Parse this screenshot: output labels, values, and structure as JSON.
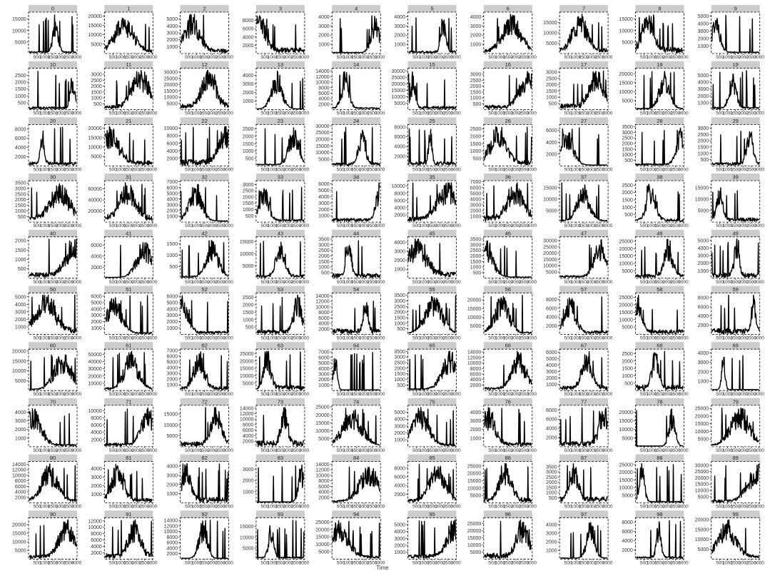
{
  "chart_data": {
    "type": "line",
    "layout": "small-multiples",
    "xlabel": "Time",
    "ylabel": "",
    "x_tick_labels": [
      "500",
      "1000",
      "1500",
      "2000",
      "2500",
      "3000"
    ],
    "xlim": [
      0,
      3000
    ],
    "grid": false,
    "legend": "none",
    "panels": [
      {
        "title": "0",
        "ymax": 18000,
        "yticks": [
          5000,
          10000,
          15000
        ]
      },
      {
        "title": "1",
        "ymax": 22000,
        "yticks": [
          5000,
          10000,
          15000,
          20000
        ]
      },
      {
        "title": "2",
        "ymax": 6000,
        "yticks": [
          1000,
          2000,
          3000,
          4000,
          5000
        ]
      },
      {
        "title": "3",
        "ymax": 10000,
        "yticks": [
          2000,
          4000,
          6000,
          8000
        ]
      },
      {
        "title": "4",
        "ymax": 4500,
        "yticks": [
          1000,
          2000,
          3000,
          4000
        ]
      },
      {
        "title": "5",
        "ymax": 4500,
        "yticks": [
          1000,
          2000,
          3000,
          4000
        ]
      },
      {
        "title": "6",
        "ymax": 4500,
        "yticks": [
          1000,
          2000,
          3000,
          4000
        ]
      },
      {
        "title": "7",
        "ymax": 20000,
        "yticks": [
          5000,
          10000,
          15000
        ]
      },
      {
        "title": "8",
        "ymax": 18000,
        "yticks": [
          5000,
          10000,
          15000
        ]
      },
      {
        "title": "9",
        "ymax": 5500,
        "yticks": [
          1000,
          2000,
          3000,
          4000,
          5000
        ]
      },
      {
        "title": "10",
        "ymax": 3000,
        "yticks": [
          500,
          1000,
          1500,
          2000,
          2500
        ]
      },
      {
        "title": "11",
        "ymax": 3500,
        "yticks": [
          500,
          1000,
          1500,
          2000,
          2500,
          3000
        ]
      },
      {
        "title": "12",
        "ymax": 33000,
        "yticks": [
          5000,
          10000,
          15000,
          20000,
          25000,
          30000
        ]
      },
      {
        "title": "13",
        "ymax": 4800,
        "yticks": [
          1000,
          2000,
          3000,
          4000
        ]
      },
      {
        "title": "14",
        "ymax": 15000,
        "yticks": [
          2000,
          4000,
          6000,
          8000,
          10000,
          12000,
          14000
        ]
      },
      {
        "title": "15",
        "ymax": 32000,
        "yticks": [
          5000,
          10000,
          15000,
          20000,
          25000,
          30000
        ]
      },
      {
        "title": "16",
        "ymax": 3500,
        "yticks": [
          500,
          1000,
          1500,
          2000,
          2500,
          3000
        ]
      },
      {
        "title": "17",
        "ymax": 3300,
        "yticks": [
          500,
          1000,
          1500,
          2000,
          2500,
          3000
        ]
      },
      {
        "title": "18",
        "ymax": 23000,
        "yticks": [
          5000,
          10000,
          15000,
          20000
        ]
      },
      {
        "title": "19",
        "ymax": 6000,
        "yticks": [
          1000,
          2000,
          3000,
          4000,
          5000
        ]
      },
      {
        "title": "20",
        "ymax": 9000,
        "yticks": [
          2000,
          4000,
          6000,
          8000
        ]
      },
      {
        "title": "21",
        "ymax": 22000,
        "yticks": [
          5000,
          10000,
          15000,
          20000
        ]
      },
      {
        "title": "22",
        "ymax": 11000,
        "yticks": [
          2000,
          4000,
          6000,
          8000,
          10000
        ]
      },
      {
        "title": "23",
        "ymax": 2800,
        "yticks": [
          500,
          1000,
          1500,
          2000,
          2500
        ]
      },
      {
        "title": "24",
        "ymax": 31000,
        "yticks": [
          5000,
          10000,
          15000,
          20000,
          25000,
          30000
        ]
      },
      {
        "title": "25",
        "ymax": 8500,
        "yticks": [
          2000,
          4000,
          6000,
          8000
        ]
      },
      {
        "title": "26",
        "ymax": 2800,
        "yticks": [
          500,
          1000,
          1500,
          2000,
          2500
        ]
      },
      {
        "title": "27",
        "ymax": 7000,
        "yticks": [
          2000,
          4000,
          6000
        ]
      },
      {
        "title": "28",
        "ymax": 3700,
        "yticks": [
          500,
          1000,
          1500,
          2000,
          2500,
          3000,
          3500
        ]
      },
      {
        "title": "29",
        "ymax": 3300,
        "yticks": [
          500,
          1000,
          1500,
          2000,
          2500,
          3000
        ]
      },
      {
        "title": "30",
        "ymax": 3700,
        "yticks": [
          500,
          1000,
          1500,
          2000,
          2500,
          3000,
          3500
        ]
      },
      {
        "title": "31",
        "ymax": 75000,
        "yticks": [
          20000,
          40000,
          60000
        ]
      },
      {
        "title": "32",
        "ymax": 7200,
        "yticks": [
          1000,
          2000,
          3000,
          4000,
          5000,
          6000,
          7000
        ]
      },
      {
        "title": "33",
        "ymax": 3300,
        "yticks": [
          500,
          1000,
          1500,
          2000,
          2500,
          3000
        ]
      },
      {
        "title": "34",
        "ymax": 6500,
        "yticks": [
          1000,
          2000,
          3000,
          4000,
          5000,
          6000
        ]
      },
      {
        "title": "35",
        "ymax": 11500,
        "yticks": [
          2000,
          4000,
          6000,
          8000,
          10000
        ]
      },
      {
        "title": "36",
        "ymax": 7200,
        "yticks": [
          1000,
          2000,
          3000,
          4000,
          5000,
          6000,
          7000
        ]
      },
      {
        "title": "37",
        "ymax": 18000,
        "yticks": [
          5000,
          10000,
          15000
        ]
      },
      {
        "title": "38",
        "ymax": 2800,
        "yticks": [
          500,
          1000,
          1500,
          2000,
          2500
        ]
      },
      {
        "title": "39",
        "ymax": 18000,
        "yticks": [
          5000,
          10000,
          15000
        ]
      },
      {
        "title": "40",
        "ymax": 2200,
        "yticks": [
          500,
          1000,
          1500,
          2000
        ]
      },
      {
        "title": "41",
        "ymax": 7500,
        "yticks": [
          2000,
          4000,
          6000
        ]
      },
      {
        "title": "42",
        "ymax": 1800,
        "yticks": [
          500,
          1000,
          1500
        ]
      },
      {
        "title": "43",
        "ymax": 17000,
        "yticks": [
          5000,
          10000,
          15000
        ]
      },
      {
        "title": "44",
        "ymax": 3700,
        "yticks": [
          500,
          1000,
          1500,
          2000,
          2500,
          3000,
          3500
        ]
      },
      {
        "title": "45",
        "ymax": 4600,
        "yticks": [
          1000,
          2000,
          3000,
          4000
        ]
      },
      {
        "title": "46",
        "ymax": 3700,
        "yticks": [
          500,
          1000,
          1500,
          2000,
          2500,
          3000,
          3500
        ]
      },
      {
        "title": "47",
        "ymax": 33000,
        "yticks": [
          5000,
          10000,
          15000,
          20000,
          25000,
          30000
        ]
      },
      {
        "title": "48",
        "ymax": 28000,
        "yticks": [
          5000,
          10000,
          15000,
          20000,
          25000
        ]
      },
      {
        "title": "49",
        "ymax": 5500,
        "yticks": [
          1000,
          2000,
          3000,
          4000,
          5000
        ]
      },
      {
        "title": "50",
        "ymax": 5500,
        "yticks": [
          1000,
          2000,
          3000,
          4000,
          5000
        ]
      },
      {
        "title": "51",
        "ymax": 6500,
        "yticks": [
          1000,
          2000,
          3000,
          4000,
          5000,
          6000
        ]
      },
      {
        "title": "52",
        "ymax": 6500,
        "yticks": [
          1000,
          2000,
          3000,
          4000,
          5000,
          6000
        ]
      },
      {
        "title": "53",
        "ymax": 2800,
        "yticks": [
          500,
          1000,
          1500,
          2000,
          2500
        ]
      },
      {
        "title": "54",
        "ymax": 15000,
        "yticks": [
          2000,
          4000,
          6000,
          8000,
          10000,
          12000,
          14000
        ]
      },
      {
        "title": "55",
        "ymax": 3700,
        "yticks": [
          500,
          1000,
          1500,
          2000,
          2500,
          3000,
          3500
        ]
      },
      {
        "title": "56",
        "ymax": 24000,
        "yticks": [
          5000,
          10000,
          15000,
          20000
        ]
      },
      {
        "title": "57",
        "ymax": 9500,
        "yticks": [
          2000,
          4000,
          6000,
          8000
        ]
      },
      {
        "title": "58",
        "ymax": 28000,
        "yticks": [
          5000,
          10000,
          15000,
          20000,
          25000
        ]
      },
      {
        "title": "59",
        "ymax": 9000,
        "yticks": [
          2000,
          4000,
          6000,
          8000
        ]
      },
      {
        "title": "60",
        "ymax": 21000,
        "yticks": [
          5000,
          10000,
          15000,
          20000
        ]
      },
      {
        "title": "61",
        "ymax": 57000,
        "yticks": [
          10000,
          20000,
          30000,
          40000,
          50000
        ]
      },
      {
        "title": "62",
        "ymax": 7200,
        "yticks": [
          1000,
          2000,
          3000,
          4000,
          5000,
          6000,
          7000
        ]
      },
      {
        "title": "63",
        "ymax": 28000,
        "yticks": [
          5000,
          10000,
          15000,
          20000,
          25000
        ]
      },
      {
        "title": "64",
        "ymax": 7500,
        "yticks": [
          1000,
          2000,
          3000,
          4000,
          5000,
          6000,
          7000
        ]
      },
      {
        "title": "65",
        "ymax": 3700,
        "yticks": [
          500,
          1000,
          1500,
          2000,
          2500,
          3000,
          3500
        ]
      },
      {
        "title": "66",
        "ymax": 15000,
        "yticks": [
          2000,
          4000,
          6000,
          8000,
          10000,
          12000,
          14000
        ]
      },
      {
        "title": "67",
        "ymax": 6500,
        "yticks": [
          1000,
          2000,
          3000,
          4000,
          5000,
          6000
        ]
      },
      {
        "title": "68",
        "ymax": 2800,
        "yticks": [
          500,
          1000,
          1500,
          2000,
          2500
        ]
      },
      {
        "title": "69",
        "ymax": 4400,
        "yticks": [
          1000,
          2000,
          3000,
          4000
        ]
      },
      {
        "title": "70",
        "ymax": 4800,
        "yticks": [
          1000,
          2000,
          3000,
          4000
        ]
      },
      {
        "title": "71",
        "ymax": 11500,
        "yticks": [
          2000,
          4000,
          6000,
          8000,
          10000
        ]
      },
      {
        "title": "72",
        "ymax": 19000,
        "yticks": [
          5000,
          10000,
          15000
        ]
      },
      {
        "title": "73",
        "ymax": 15000,
        "yticks": [
          2000,
          4000,
          6000,
          8000,
          10000,
          12000,
          14000
        ]
      },
      {
        "title": "74",
        "ymax": 26000,
        "yticks": [
          5000,
          10000,
          15000,
          20000,
          25000
        ]
      },
      {
        "title": "75",
        "ymax": 6000,
        "yticks": [
          1000,
          2000,
          3000,
          4000,
          5000
        ]
      },
      {
        "title": "76",
        "ymax": 4800,
        "yticks": [
          1000,
          2000,
          3000,
          4000
        ]
      },
      {
        "title": "77",
        "ymax": 9000,
        "yticks": [
          2000,
          4000,
          6000,
          8000
        ]
      },
      {
        "title": "78",
        "ymax": 24000,
        "yticks": [
          5000,
          10000,
          15000,
          20000
        ]
      },
      {
        "title": "79",
        "ymax": 27000,
        "yticks": [
          5000,
          10000,
          15000,
          20000,
          25000
        ]
      },
      {
        "title": "80",
        "ymax": 15000,
        "yticks": [
          2000,
          4000,
          6000,
          8000,
          10000,
          12000,
          14000
        ]
      },
      {
        "title": "81",
        "ymax": 4800,
        "yticks": [
          1000,
          2000,
          3000,
          4000
        ]
      },
      {
        "title": "82",
        "ymax": 4500,
        "yticks": [
          1000,
          2000,
          3000,
          4000
        ]
      },
      {
        "title": "83",
        "ymax": 3700,
        "yticks": [
          1000,
          2000,
          3000
        ]
      },
      {
        "title": "84",
        "ymax": 15000,
        "yticks": [
          2000,
          4000,
          6000,
          8000,
          10000,
          12000,
          14000
        ]
      },
      {
        "title": "85",
        "ymax": 9500,
        "yticks": [
          2000,
          4000,
          6000,
          8000
        ]
      },
      {
        "title": "86",
        "ymax": 28000,
        "yticks": [
          5000,
          10000,
          15000,
          20000,
          25000
        ]
      },
      {
        "title": "87",
        "ymax": 4000,
        "yticks": [
          500,
          1000,
          1500,
          2000,
          2500,
          3000,
          3500
        ]
      },
      {
        "title": "88",
        "ymax": 27000,
        "yticks": [
          5000,
          10000,
          15000,
          20000,
          25000
        ]
      },
      {
        "title": "89",
        "ymax": 33000,
        "yticks": [
          5000,
          10000,
          15000,
          20000,
          25000,
          30000
        ]
      },
      {
        "title": "90",
        "ymax": 24000,
        "yticks": [
          5000,
          10000,
          15000,
          20000
        ]
      },
      {
        "title": "91",
        "ymax": 13000,
        "yticks": [
          2000,
          4000,
          6000,
          8000,
          10000,
          12000
        ]
      },
      {
        "title": "92",
        "ymax": 15000,
        "yticks": [
          2000,
          4000,
          6000,
          8000,
          10000,
          12000,
          14000
        ]
      },
      {
        "title": "93",
        "ymax": 19000,
        "yticks": [
          5000,
          10000,
          15000
        ]
      },
      {
        "title": "94",
        "ymax": 28000,
        "yticks": [
          5000,
          10000,
          15000,
          20000,
          25000
        ]
      },
      {
        "title": "95",
        "ymax": 6000,
        "yticks": [
          1000,
          2000,
          3000,
          4000,
          5000
        ]
      },
      {
        "title": "96",
        "ymax": 29000,
        "yticks": [
          5000,
          10000,
          15000,
          20000,
          25000
        ]
      },
      {
        "title": "97",
        "ymax": 4800,
        "yticks": [
          1000,
          2000,
          3000,
          4000
        ]
      },
      {
        "title": "98",
        "ymax": 9000,
        "yticks": [
          2000,
          4000,
          6000,
          8000
        ]
      },
      {
        "title": "99",
        "ymax": 21000,
        "yticks": [
          5000,
          10000,
          15000,
          20000
        ]
      }
    ]
  }
}
